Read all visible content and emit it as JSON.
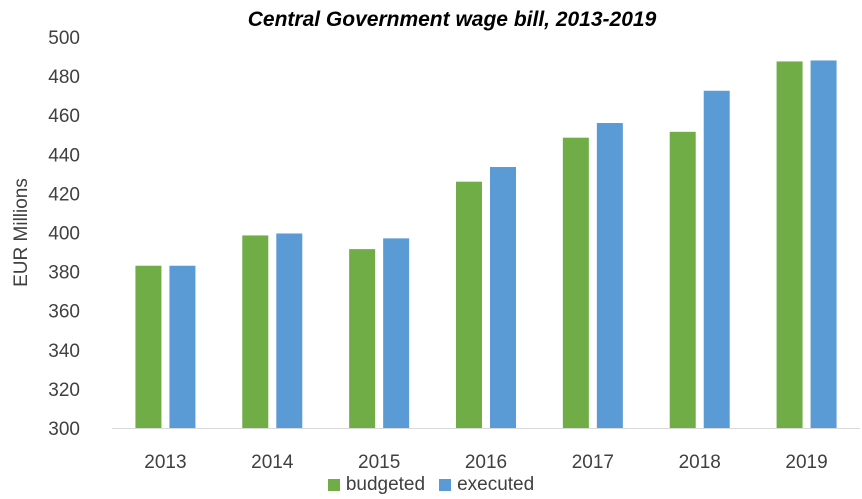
{
  "chart_data": {
    "type": "bar",
    "title": "Central Government wage bill, 2013-2019",
    "xlabel": "",
    "ylabel": "EUR Millions",
    "categories": [
      "2013",
      "2014",
      "2015",
      "2016",
      "2017",
      "2018",
      "2019"
    ],
    "series": [
      {
        "name": "budgeted",
        "color": "#70ad47",
        "values": [
          383,
          398.5,
          391.5,
          426,
          448.5,
          451.5,
          487.5
        ]
      },
      {
        "name": "executed",
        "color": "#5b9bd5",
        "values": [
          383,
          399.5,
          397,
          433.5,
          456,
          472.5,
          488
        ]
      }
    ],
    "ylim": [
      300,
      500
    ],
    "yticks": [
      "300",
      "320",
      "340",
      "360",
      "380",
      "400",
      "420",
      "440",
      "460",
      "480",
      "500"
    ],
    "grid": false,
    "legend_position": "bottom"
  }
}
